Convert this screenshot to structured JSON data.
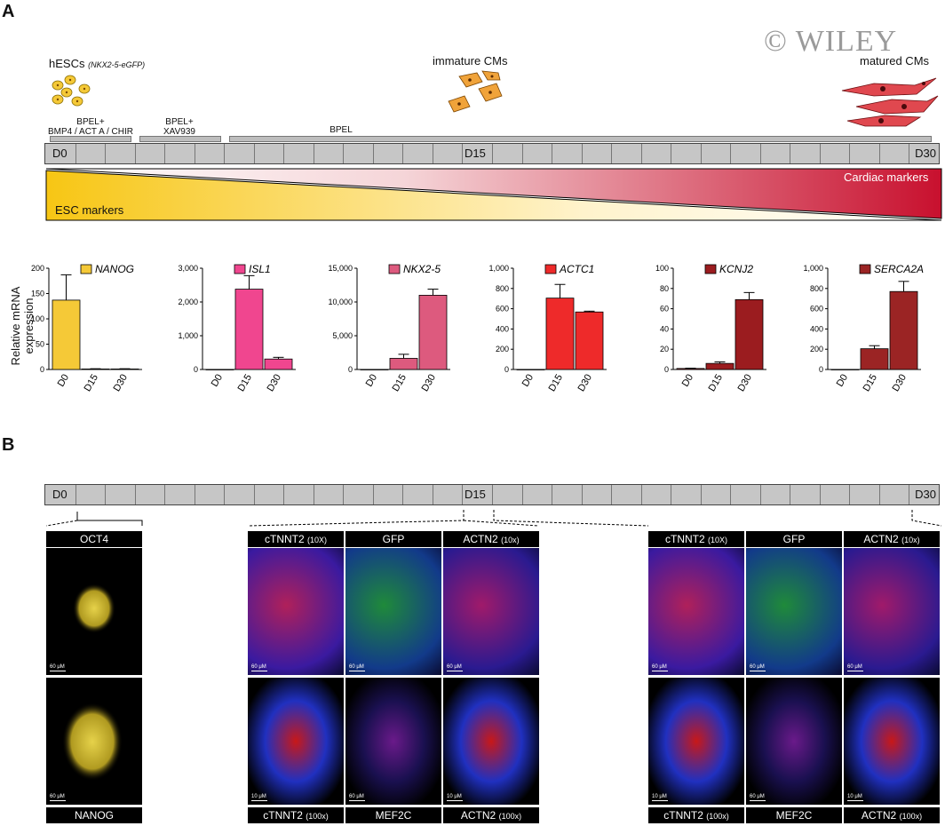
{
  "panel_a": {
    "letter": "A",
    "watermark": "© WILEY",
    "stages": {
      "start": {
        "label": "hESCs",
        "sub": "(NKX2-5-eGFP)"
      },
      "mid": {
        "label": "immature CMs"
      },
      "end": {
        "label": "matured CMs"
      }
    },
    "media": [
      {
        "line1": "BPEL+",
        "line2": "BMP4 / ACT A / CHIR"
      },
      {
        "line1": "BPEL+",
        "line2": "XAV939"
      },
      {
        "line1": "BPEL",
        "line2": ""
      }
    ],
    "timeline": {
      "d0": "D0",
      "d15": "D15",
      "d30": "D30",
      "segments": 30
    },
    "gradient": {
      "esc": "ESC markers",
      "cardiac": "Cardiac markers",
      "yellow": "#f7c614",
      "red": "#c8102e"
    },
    "ylabel": "Relative mRNA expression"
  },
  "chart_data": [
    {
      "type": "bar",
      "gene": "NANOG",
      "color": "#f5c937",
      "categories": [
        "D0",
        "D15",
        "D30"
      ],
      "values": [
        137,
        1,
        1
      ],
      "errors": [
        50,
        0.5,
        0.5
      ],
      "ylim": [
        0,
        200
      ],
      "yticks": [
        "0",
        "50",
        "100",
        "150",
        "200"
      ]
    },
    {
      "type": "bar",
      "gene": "ISL1",
      "color": "#f0468f",
      "categories": [
        "D0",
        "D15",
        "D30"
      ],
      "values": [
        0,
        2380,
        310
      ],
      "errors": [
        0,
        400,
        50
      ],
      "ylim": [
        0,
        3000
      ],
      "yticks": [
        "0",
        "1,000",
        "2,000",
        "3,000"
      ]
    },
    {
      "type": "bar",
      "gene": "NKX2-5",
      "color": "#dd5a7e",
      "categories": [
        "D0",
        "D15",
        "D30"
      ],
      "values": [
        0,
        1650,
        11000
      ],
      "errors": [
        0,
        600,
        900
      ],
      "ylim": [
        0,
        15000
      ],
      "yticks": [
        "0",
        "5,000",
        "10,000",
        "15,000"
      ]
    },
    {
      "type": "bar",
      "gene": "ACTC1",
      "color": "#ee2a2a",
      "categories": [
        "D0",
        "D15",
        "D30"
      ],
      "values": [
        0,
        705,
        568
      ],
      "errors": [
        0,
        135,
        8
      ],
      "ylim": [
        0,
        1000
      ],
      "yticks": [
        "0",
        "200",
        "400",
        "600",
        "800",
        "1,000"
      ]
    },
    {
      "type": "bar",
      "gene": "KCNJ2",
      "color": "#9b1c1f",
      "categories": [
        "D0",
        "D15",
        "D30"
      ],
      "values": [
        1,
        6,
        69
      ],
      "errors": [
        0.3,
        1.5,
        7
      ],
      "ylim": [
        0,
        100
      ],
      "yticks": [
        "0",
        "20",
        "40",
        "60",
        "80",
        "100"
      ]
    },
    {
      "type": "bar",
      "gene": "SERCA2A",
      "color": "#9b2424",
      "categories": [
        "D0",
        "D15",
        "D30"
      ],
      "values": [
        0,
        205,
        770
      ],
      "errors": [
        0,
        30,
        100
      ],
      "ylim": [
        0,
        1000
      ],
      "yticks": [
        "0",
        "200",
        "400",
        "600",
        "800",
        "1,000"
      ]
    }
  ],
  "panel_b": {
    "letter": "B",
    "timeline": {
      "d0": "D0",
      "d15": "D15",
      "d30": "D30"
    },
    "d0_labels": {
      "top": "OCT4",
      "bottom": "NANOG"
    },
    "d15_top": [
      {
        "main": "cTNNT2",
        "sub": "(10X)"
      },
      {
        "main": "GFP",
        "sub": ""
      },
      {
        "main": "ACTN2",
        "sub": "(10x)"
      }
    ],
    "d15_bottom": [
      {
        "main": "cTNNT2",
        "sub": "(100x)"
      },
      {
        "main": "MEF2C",
        "sub": ""
      },
      {
        "main": "ACTN2",
        "sub": "(100x)"
      }
    ],
    "d30_top": [
      {
        "main": "cTNNT2",
        "sub": "(10X)"
      },
      {
        "main": "GFP",
        "sub": ""
      },
      {
        "main": "ACTN2",
        "sub": "(10x)"
      }
    ],
    "d30_bottom": [
      {
        "main": "cTNNT2",
        "sub": "(100x)"
      },
      {
        "main": "MEF2C",
        "sub": ""
      },
      {
        "main": "ACTN2",
        "sub": "(100x)"
      }
    ],
    "scale_labels": {
      "s60": "60 μM",
      "s10": "10 μM"
    }
  }
}
